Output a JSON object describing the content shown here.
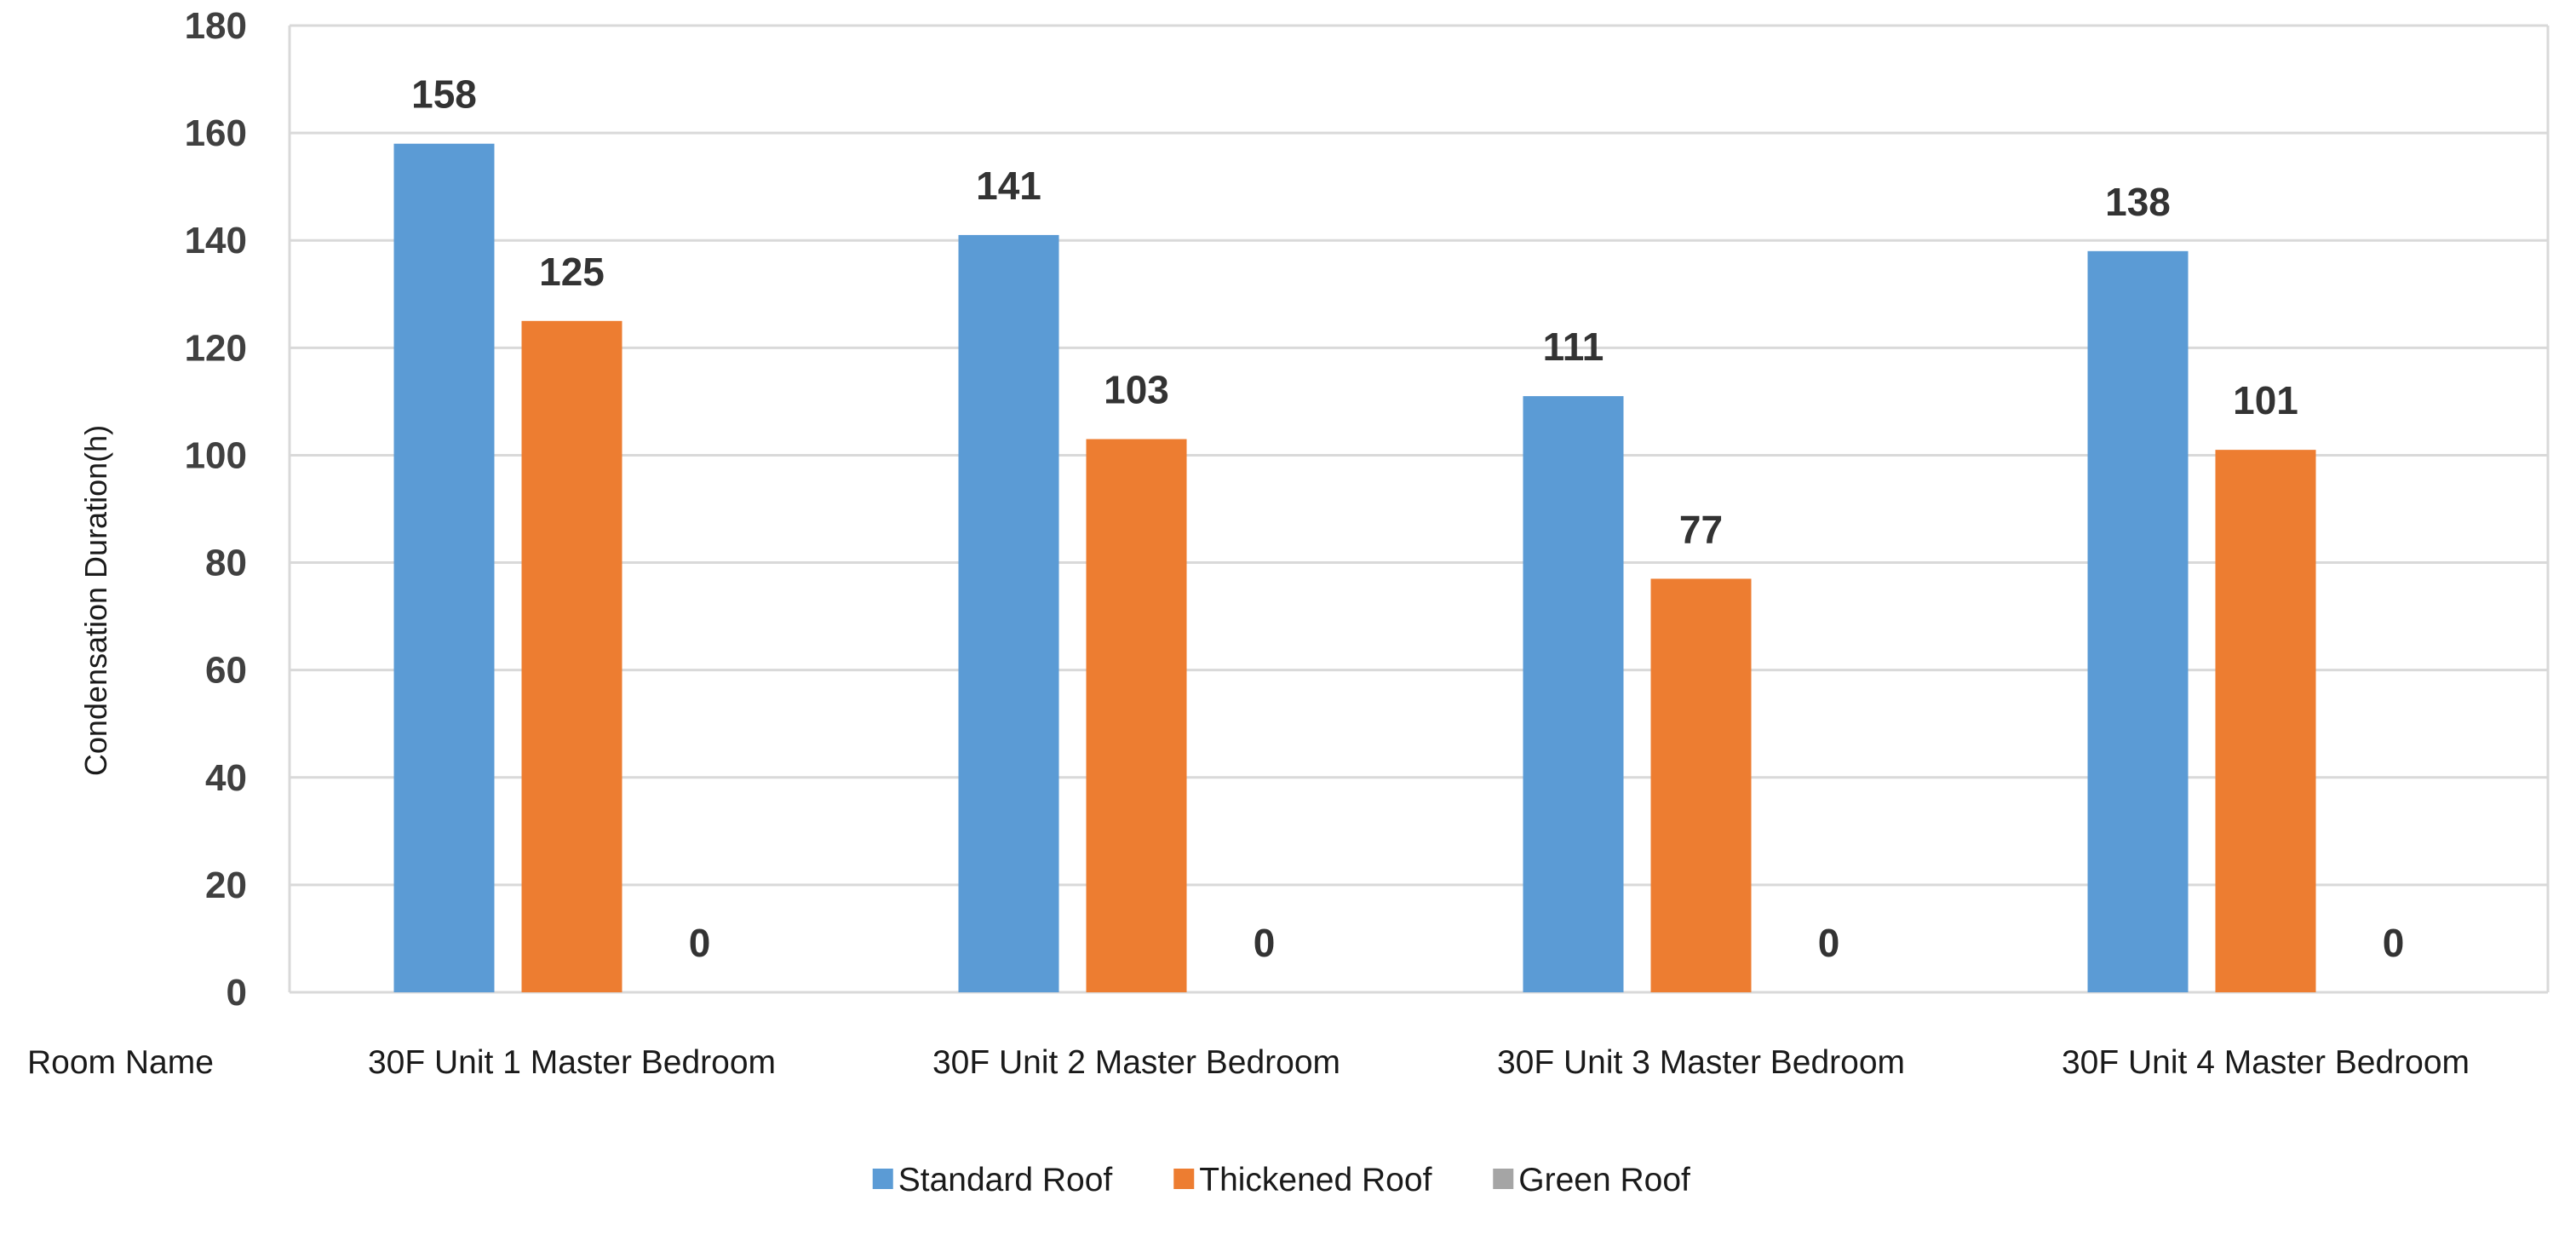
{
  "chart_data": {
    "type": "bar",
    "categories": [
      "30F Unit 1 Master Bedroom",
      "30F Unit 2 Master Bedroom",
      "30F Unit 3 Master Bedroom",
      "30F Unit 4 Master Bedroom"
    ],
    "series": [
      {
        "name": "Standard Roof",
        "color": "#5B9BD5",
        "values": [
          158,
          141,
          111,
          138
        ]
      },
      {
        "name": "Thickened Roof",
        "color": "#ED7D31",
        "values": [
          125,
          103,
          77,
          101
        ]
      },
      {
        "name": "Green Roof",
        "color": "#A5A5A5",
        "values": [
          0,
          0,
          0,
          0
        ]
      }
    ],
    "xlabel": "Room Name",
    "ylabel": "Condensation Duration(h)",
    "ylim": [
      0,
      180
    ],
    "yticks": [
      0,
      20,
      40,
      60,
      80,
      100,
      120,
      140,
      160,
      180
    ],
    "grid": true,
    "data_labels": true,
    "legend_position": "bottom"
  }
}
